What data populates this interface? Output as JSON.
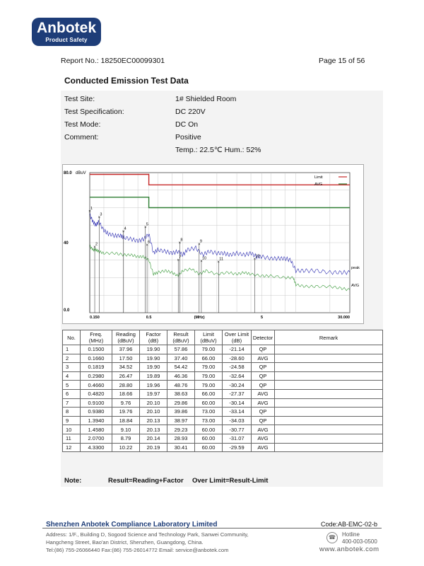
{
  "logo": {
    "brand": "Anbotek",
    "sub": "Product Safety"
  },
  "header": {
    "report_no": "Report No.: 18250EC00099301",
    "page": "Page 15 of 56"
  },
  "section_title": "Conducted Emission Test Data",
  "info": [
    {
      "label": "Test Site:",
      "value": "1# Shielded Room"
    },
    {
      "label": "Test Specification:",
      "value": "DC 220V"
    },
    {
      "label": "Test Mode:",
      "value": "DC On"
    },
    {
      "label": "Comment:",
      "value": "Positive"
    }
  ],
  "env": "Temp.: 22.5℃  Hum.: 52%",
  "chart_data": {
    "type": "line",
    "y_unit_label": "dBuV",
    "y_top_label": "80.0",
    "y_mid_label": "40",
    "y_bottom_label": "0.0",
    "ylim": [
      0,
      80
    ],
    "x_scale": "log",
    "xlim": [
      0.15,
      30
    ],
    "x_ticks": [
      "0.150",
      "0.5",
      "(MHz)",
      "5",
      "30.000"
    ],
    "legend": [
      {
        "name": "Limit",
        "color": "#c62828"
      },
      {
        "name": "AVG",
        "color": "#2e7d32"
      }
    ],
    "limit_qp": [
      [
        0.15,
        79
      ],
      [
        0.5,
        79
      ],
      [
        0.5,
        73
      ],
      [
        30,
        73
      ]
    ],
    "limit_avg": [
      [
        0.15,
        66
      ],
      [
        0.5,
        66
      ],
      [
        0.5,
        60
      ],
      [
        30,
        60
      ]
    ],
    "peak_label": "peak",
    "avg_label": "AVG",
    "peak_trace": [
      [
        0.15,
        56
      ],
      [
        0.16,
        52
      ],
      [
        0.17,
        50
      ],
      [
        0.18,
        52
      ],
      [
        0.2,
        47
      ],
      [
        0.22,
        45
      ],
      [
        0.25,
        44
      ],
      [
        0.28,
        44
      ],
      [
        0.3,
        43
      ],
      [
        0.35,
        42
      ],
      [
        0.4,
        41
      ],
      [
        0.45,
        42
      ],
      [
        0.5,
        45
      ],
      [
        0.55,
        34
      ],
      [
        0.6,
        36
      ],
      [
        0.7,
        35
      ],
      [
        0.8,
        34
      ],
      [
        0.9,
        35
      ],
      [
        1.0,
        33
      ],
      [
        1.1,
        36
      ],
      [
        1.3,
        37
      ],
      [
        1.5,
        33
      ],
      [
        1.7,
        35
      ],
      [
        2.0,
        34
      ],
      [
        2.3,
        34
      ],
      [
        2.6,
        33
      ],
      [
        3.0,
        34
      ],
      [
        3.5,
        33
      ],
      [
        4.0,
        34
      ],
      [
        4.5,
        32
      ],
      [
        5.0,
        32
      ],
      [
        6.0,
        31
      ],
      [
        7.0,
        31
      ],
      [
        8.0,
        31
      ],
      [
        9.0,
        30
      ],
      [
        10.0,
        24
      ],
      [
        12.0,
        24
      ],
      [
        15.0,
        24
      ],
      [
        20.0,
        23
      ],
      [
        25.0,
        23
      ],
      [
        30.0,
        23
      ]
    ],
    "avg_trace": [
      [
        0.15,
        38
      ],
      [
        0.16,
        36
      ],
      [
        0.17,
        36
      ],
      [
        0.18,
        35
      ],
      [
        0.2,
        34
      ],
      [
        0.25,
        34
      ],
      [
        0.3,
        33
      ],
      [
        0.35,
        33
      ],
      [
        0.4,
        32
      ],
      [
        0.45,
        32
      ],
      [
        0.5,
        30
      ],
      [
        0.55,
        22
      ],
      [
        0.6,
        23
      ],
      [
        0.7,
        24
      ],
      [
        0.8,
        23
      ],
      [
        0.9,
        21
      ],
      [
        1.0,
        24
      ],
      [
        1.2,
        25
      ],
      [
        1.4,
        22
      ],
      [
        1.6,
        24
      ],
      [
        2.0,
        22
      ],
      [
        2.5,
        23
      ],
      [
        3.0,
        22
      ],
      [
        3.5,
        23
      ],
      [
        4.0,
        22
      ],
      [
        5.0,
        21
      ],
      [
        6.0,
        21
      ],
      [
        8.0,
        20
      ],
      [
        9.5,
        20
      ],
      [
        10.0,
        16
      ],
      [
        12.0,
        15
      ],
      [
        15.0,
        15
      ],
      [
        20.0,
        15
      ],
      [
        25.0,
        14
      ],
      [
        30.0,
        13
      ]
    ],
    "markers": [
      {
        "n": "1",
        "f": 0.15,
        "v": 57.86
      },
      {
        "n": "2",
        "f": 0.166,
        "v": 37.4
      },
      {
        "n": "3",
        "f": 0.1819,
        "v": 54.42
      },
      {
        "n": "4",
        "f": 0.298,
        "v": 46.36
      },
      {
        "n": "5",
        "f": 0.466,
        "v": 48.76
      },
      {
        "n": "6",
        "f": 0.482,
        "v": 38.63
      },
      {
        "n": "7",
        "f": 0.91,
        "v": 29.86
      },
      {
        "n": "8",
        "f": 0.938,
        "v": 39.86
      },
      {
        "n": "9",
        "f": 1.394,
        "v": 38.97
      },
      {
        "n": "10",
        "f": 1.458,
        "v": 29.23
      },
      {
        "n": "11",
        "f": 2.07,
        "v": 28.93
      },
      {
        "n": "12",
        "f": 4.33,
        "v": 30.41
      }
    ]
  },
  "table": {
    "headers": [
      "No.",
      "Freq.\n(MHz)",
      "Reading\n(dBuV)",
      "Factor\n(dB)",
      "Result\n(dBuV)",
      "Limit\n(dBuV)",
      "Over Limit\n(dB)",
      "Detector",
      "Remark"
    ],
    "rows": [
      [
        "1",
        "0.1500",
        "37.96",
        "19.90",
        "57.86",
        "79.00",
        "-21.14",
        "QP",
        ""
      ],
      [
        "2",
        "0.1660",
        "17.50",
        "19.90",
        "37.40",
        "66.00",
        "-28.60",
        "AVG",
        ""
      ],
      [
        "3",
        "0.1819",
        "34.52",
        "19.90",
        "54.42",
        "79.00",
        "-24.58",
        "QP",
        ""
      ],
      [
        "4",
        "0.2980",
        "26.47",
        "19.89",
        "46.36",
        "79.00",
        "-32.64",
        "QP",
        ""
      ],
      [
        "5",
        "0.4660",
        "28.80",
        "19.96",
        "48.76",
        "79.00",
        "-30.24",
        "QP",
        ""
      ],
      [
        "6",
        "0.4820",
        "18.66",
        "19.97",
        "38.63",
        "66.00",
        "-27.37",
        "AVG",
        ""
      ],
      [
        "7",
        "0.9100",
        "9.76",
        "20.10",
        "29.86",
        "60.00",
        "-30.14",
        "AVG",
        ""
      ],
      [
        "8",
        "0.9380",
        "19.76",
        "20.10",
        "39.86",
        "73.00",
        "-33.14",
        "QP",
        ""
      ],
      [
        "9",
        "1.3940",
        "18.84",
        "20.13",
        "38.97",
        "73.00",
        "-34.03",
        "QP",
        ""
      ],
      [
        "10",
        "1.4580",
        "9.10",
        "20.13",
        "29.23",
        "60.00",
        "-30.77",
        "AVG",
        ""
      ],
      [
        "11",
        "2.0700",
        "8.79",
        "20.14",
        "28.93",
        "60.00",
        "-31.07",
        "AVG",
        ""
      ],
      [
        "12",
        "4.3300",
        "10.22",
        "20.19",
        "30.41",
        "60.00",
        "-29.59",
        "AVG",
        ""
      ]
    ]
  },
  "note": {
    "label": "Note:",
    "text1": "Result=Reading+Factor",
    "text2": "Over Limit=Result-Limit"
  },
  "footer": {
    "lab": "Shenzhen Anbotek Compliance Laboratory Limited",
    "code": "Code:AB-EMC-02-b",
    "addr1": "Address: 1/F., Building D, Sogood Science and Technology Park, Sanwei Community,",
    "addr2": "Hangcheng Street, Bao'an District, Shenzhen, Guangdong, China.",
    "addr3": "Tel:(86) 755-26066440      Fax:(86) 755-26014772      Email: service@anbotek.com",
    "hotline": "Hotline",
    "hotline_no": "400-003-0500",
    "web": "www.anbotek.com"
  }
}
